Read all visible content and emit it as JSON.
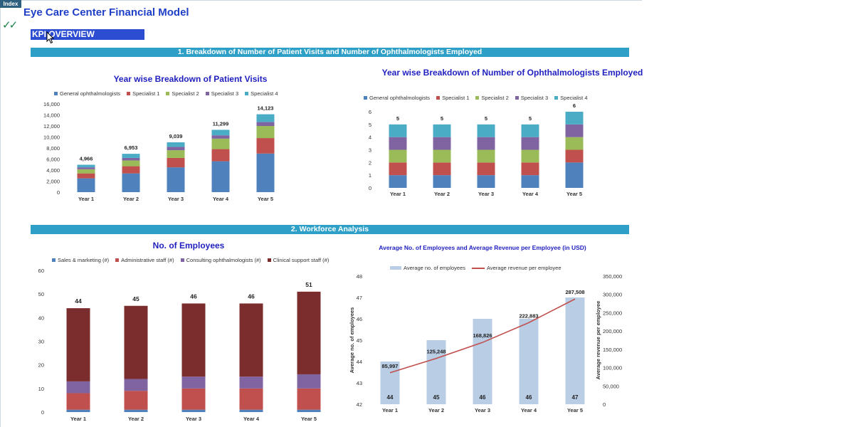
{
  "header": {
    "index_tab": "Index",
    "title": "Eye Care Center Financial Model",
    "kpi_label": "KPI OVERVIEW"
  },
  "sections": {
    "s1": "1. Breakdown of Number of Patient Visits and Number of Ophthalmologists Employed",
    "s2": "2. Workforce Analysis"
  },
  "colors": {
    "blue": "#4f81bd",
    "red": "#c0504d",
    "green": "#9bbb59",
    "purple": "#8064a2",
    "teal": "#4bacc6",
    "darkred": "#7b2c2c",
    "lightblue": "#b9cde5",
    "line": "#c0504d"
  },
  "chart_data": [
    {
      "type": "bar",
      "stacked": true,
      "title": "Year wise Breakdown of Patient Visits",
      "categories": [
        "Year 1",
        "Year 2",
        "Year 3",
        "Year 4",
        "Year 5"
      ],
      "series": [
        {
          "name": "General ophthalmologists",
          "values": [
            2500,
            3400,
            4500,
            5600,
            7000
          ]
        },
        {
          "name": "Specialist 1",
          "values": [
            900,
            1300,
            1700,
            2200,
            2800
          ]
        },
        {
          "name": "Specialist 2",
          "values": [
            750,
            1050,
            1400,
            1900,
            2200
          ]
        },
        {
          "name": "Specialist 3",
          "values": [
            350,
            450,
            600,
            600,
            700
          ]
        },
        {
          "name": "Specialist 4",
          "values": [
            466,
            753,
            839,
            999,
            1423
          ]
        }
      ],
      "totals": [
        "4,966",
        "6,953",
        "9,039",
        "11,299",
        "14,123"
      ],
      "ylim": [
        0,
        16000
      ],
      "yticks": [
        "0",
        "2,000",
        "4,000",
        "6,000",
        "8,000",
        "10,000",
        "12,000",
        "14,000",
        "16,000"
      ],
      "legend": "top"
    },
    {
      "type": "bar",
      "stacked": true,
      "title": "Year wise Breakdown of Number of Ophthalmologists Employed",
      "categories": [
        "Year 1",
        "Year 2",
        "Year 3",
        "Year 4",
        "Year 5"
      ],
      "series": [
        {
          "name": "General ophthalmologists",
          "values": [
            1,
            1,
            1,
            1,
            2
          ]
        },
        {
          "name": "Specialist 1",
          "values": [
            1,
            1,
            1,
            1,
            1
          ]
        },
        {
          "name": "Specialist 2",
          "values": [
            1,
            1,
            1,
            1,
            1
          ]
        },
        {
          "name": "Specialist 3",
          "values": [
            1,
            1,
            1,
            1,
            1
          ]
        },
        {
          "name": "Specialist 4",
          "values": [
            1,
            1,
            1,
            1,
            1
          ]
        }
      ],
      "totals": [
        "5",
        "5",
        "5",
        "5",
        "6"
      ],
      "ylim": [
        0,
        6
      ],
      "yticks": [
        "0",
        "1",
        "2",
        "3",
        "4",
        "5",
        "6"
      ],
      "legend": "top"
    },
    {
      "type": "bar",
      "stacked": true,
      "title": "No. of Employees",
      "categories": [
        "Year 1",
        "Year 2",
        "Year 3",
        "Year 4",
        "Year 5"
      ],
      "series": [
        {
          "name": "Sales & marketing (#)",
          "values": [
            1,
            1,
            1,
            1,
            1
          ]
        },
        {
          "name": "Administrative staff (#)",
          "values": [
            7,
            8,
            9,
            9,
            9
          ]
        },
        {
          "name": "Consulting ophthalmologists (#)",
          "values": [
            5,
            5,
            5,
            5,
            6
          ]
        },
        {
          "name": "Clinical support staff (#)",
          "values": [
            31,
            31,
            31,
            31,
            35
          ]
        }
      ],
      "totals": [
        "44",
        "45",
        "46",
        "46",
        "51"
      ],
      "ylim": [
        0,
        60
      ],
      "yticks": [
        "0",
        "10",
        "20",
        "30",
        "40",
        "50",
        "60"
      ],
      "legend": "top"
    },
    {
      "type": "bar",
      "title": "Average No. of Employees and Average Revenue per Employee (in USD)",
      "categories": [
        "Year 1",
        "Year 2",
        "Year 3",
        "Year 4",
        "Year 5"
      ],
      "series": [
        {
          "name": "Average no. of employees",
          "type": "bar",
          "axis": "left",
          "values": [
            44,
            45,
            46,
            46,
            47
          ],
          "labels": [
            "44",
            "45",
            "46",
            "46",
            "47"
          ]
        },
        {
          "name": "Average revenue per employee",
          "type": "line",
          "axis": "right",
          "values": [
            85997,
            125248,
            168826,
            222883,
            287508
          ],
          "labels": [
            "85,997",
            "125,248",
            "168,826",
            "222,883",
            "287,508"
          ]
        }
      ],
      "ylabel": "Average no. of employees",
      "ylabel_right": "Average revenue per employee",
      "ylim": [
        42,
        48
      ],
      "ylim_right": [
        0,
        350000
      ],
      "yticks": [
        "42",
        "43",
        "44",
        "45",
        "46",
        "47",
        "48"
      ],
      "yticks_right": [
        "0",
        "50,000",
        "100,000",
        "150,000",
        "200,000",
        "250,000",
        "300,000",
        "350,000"
      ],
      "legend": "top"
    }
  ]
}
